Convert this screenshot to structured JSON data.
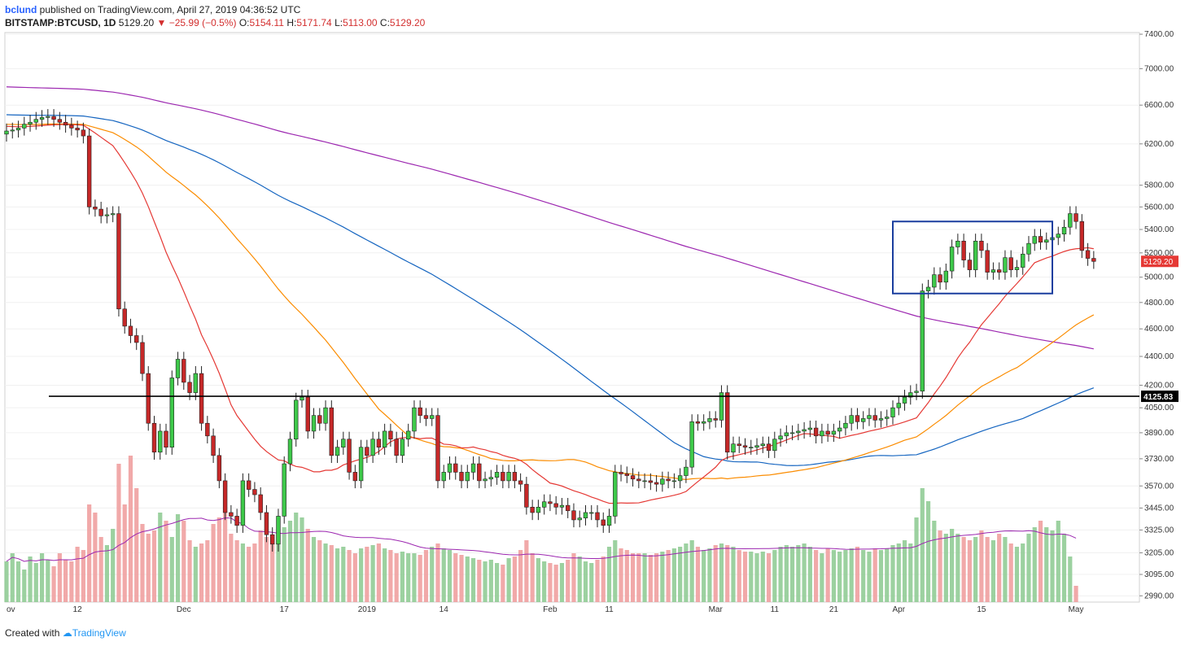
{
  "header": {
    "user": "bclund",
    "published": "published on TradingView.com, April 27, 2019 04:36:52 UTC"
  },
  "ohlc": {
    "symbol": "BITSTAMP:BTCUSD, 1D",
    "last": "5129.20",
    "change": "▼ −25.99 (−0.5%)",
    "o_label": "O:",
    "o": "5154.11",
    "h_label": "H:",
    "h": "5171.74",
    "l_label": "L:",
    "l": "5113.00",
    "c_label": "C:",
    "c": "5129.20"
  },
  "footer": {
    "created": "Created with",
    "brand": "TradingView"
  },
  "colors": {
    "up": "#26a69a",
    "up_body": "#3ec94a",
    "down": "#c62828",
    "down_body": "#c62828",
    "vol_up": "#8bc98f",
    "vol_down": "#ef9a9a",
    "ma_red": "#e53935",
    "ma_orange": "#fb8c00",
    "ma_blue": "#1565c0",
    "ma_purple": "#9c27b0",
    "box": "#1a3d9e",
    "hline": "#000000",
    "price_tag": "#e53935"
  },
  "chart_data": {
    "type": "candlestick",
    "symbol": "BITSTAMP:BTCUSD",
    "timeframe": "1D",
    "ylim": [
      2960,
      7420
    ],
    "y_scale": "log",
    "y_ticks": [
      2990,
      3095,
      3205,
      3325,
      3445,
      3570,
      3730,
      3890,
      4050,
      4200,
      4400,
      4600,
      4800,
      5000,
      5200,
      5400,
      5600,
      5800,
      6200,
      6600,
      7000,
      7400
    ],
    "y_tick_labels": [
      "2990.00",
      "3095.00",
      "3205.00",
      "3325.00",
      "3445.00",
      "3570.00",
      "3730.00",
      "3890.00",
      "4050.00",
      "4200.00",
      "4400.00",
      "4600.00",
      "4800.00",
      "5000.00",
      "5200.00",
      "5400.00",
      "5600.00",
      "5800.00",
      "6200.00",
      "6600.00",
      "7000.00",
      "7400.00"
    ],
    "x_labels": [
      {
        "day": 0,
        "label": "ov"
      },
      {
        "day": 12,
        "label": "12"
      },
      {
        "day": 30,
        "label": "Dec"
      },
      {
        "day": 47,
        "label": "17"
      },
      {
        "day": 61,
        "label": "2019"
      },
      {
        "day": 74,
        "label": "14"
      },
      {
        "day": 92,
        "label": "Feb"
      },
      {
        "day": 102,
        "label": "11"
      },
      {
        "day": 120,
        "label": "Mar"
      },
      {
        "day": 130,
        "label": "11"
      },
      {
        "day": 140,
        "label": "21"
      },
      {
        "day": 151,
        "label": "Apr"
      },
      {
        "day": 165,
        "label": "15"
      },
      {
        "day": 181,
        "label": "May"
      }
    ],
    "last_price_label": "5129.20",
    "hline_label": "4125.83",
    "hline_value": 4125.83,
    "consolidation_box": {
      "start_day": 150,
      "end_day": 177,
      "high": 5470,
      "low": 4870
    },
    "close": [
      6330,
      6340,
      6360,
      6400,
      6420,
      6450,
      6470,
      6480,
      6450,
      6420,
      6390,
      6360,
      6340,
      6280,
      5600,
      5580,
      5520,
      5530,
      5540,
      4750,
      4620,
      4550,
      4500,
      4280,
      3950,
      3770,
      3900,
      3800,
      4250,
      4380,
      4220,
      4150,
      4280,
      3950,
      3870,
      3750,
      3600,
      3420,
      3400,
      3350,
      3600,
      3550,
      3520,
      3420,
      3300,
      3250,
      3400,
      3700,
      3850,
      4100,
      4120,
      3900,
      4000,
      3950,
      4050,
      3750,
      3800,
      3850,
      3650,
      3600,
      3800,
      3750,
      3850,
      3800,
      3900,
      3850,
      3750,
      3850,
      3900,
      4050,
      4000,
      3980,
      4000,
      3600,
      3650,
      3700,
      3650,
      3600,
      3650,
      3700,
      3600,
      3610,
      3620,
      3650,
      3600,
      3650,
      3600,
      3580,
      3450,
      3420,
      3450,
      3480,
      3470,
      3450,
      3460,
      3430,
      3380,
      3390,
      3420,
      3420,
      3380,
      3350,
      3400,
      3650,
      3640,
      3630,
      3610,
      3600,
      3600,
      3590,
      3580,
      3610,
      3600,
      3600,
      3630,
      3680,
      3960,
      3950,
      3960,
      3980,
      3970,
      4150,
      3770,
      3820,
      3810,
      3800,
      3800,
      3810,
      3820,
      3780,
      3850,
      3870,
      3890,
      3890,
      3900,
      3910,
      3920,
      3870,
      3900,
      3880,
      3900,
      3920,
      3950,
      4000,
      3960,
      3980,
      4000,
      3970,
      3980,
      3990,
      4050,
      4080,
      4120,
      4150,
      4160,
      4890,
      4920,
      5020,
      4960,
      5050,
      5250,
      5300,
      5140,
      5060,
      5300,
      5220,
      5040,
      5060,
      5040,
      5160,
      5060,
      5080,
      5190,
      5280,
      5340,
      5290,
      5310,
      5330,
      5360,
      5420,
      5540,
      5470,
      5220,
      5154,
      5129
    ],
    "volume_ratio": [
      0.25,
      0.3,
      0.25,
      0.2,
      0.28,
      0.24,
      0.3,
      0.26,
      0.22,
      0.3,
      0.26,
      0.25,
      0.34,
      0.32,
      0.6,
      0.55,
      0.4,
      0.35,
      0.45,
      0.85,
      0.6,
      0.9,
      0.7,
      0.48,
      0.42,
      0.44,
      0.55,
      0.5,
      0.4,
      0.54,
      0.5,
      0.38,
      0.34,
      0.36,
      0.38,
      0.48,
      0.52,
      0.56,
      0.42,
      0.38,
      0.36,
      0.34,
      0.36,
      0.44,
      0.4,
      0.36,
      0.44,
      0.46,
      0.5,
      0.55,
      0.52,
      0.45,
      0.4,
      0.38,
      0.36,
      0.35,
      0.33,
      0.34,
      0.32,
      0.3,
      0.33,
      0.34,
      0.35,
      0.36,
      0.33,
      0.32,
      0.3,
      0.31,
      0.3,
      0.3,
      0.29,
      0.32,
      0.34,
      0.36,
      0.33,
      0.32,
      0.3,
      0.29,
      0.28,
      0.27,
      0.26,
      0.25,
      0.26,
      0.24,
      0.23,
      0.27,
      0.28,
      0.32,
      0.38,
      0.3,
      0.27,
      0.25,
      0.24,
      0.23,
      0.24,
      0.26,
      0.3,
      0.28,
      0.25,
      0.24,
      0.26,
      0.28,
      0.34,
      0.38,
      0.33,
      0.32,
      0.3,
      0.3,
      0.3,
      0.29,
      0.3,
      0.31,
      0.32,
      0.33,
      0.34,
      0.36,
      0.38,
      0.34,
      0.32,
      0.33,
      0.35,
      0.36,
      0.35,
      0.34,
      0.32,
      0.31,
      0.31,
      0.3,
      0.31,
      0.3,
      0.32,
      0.34,
      0.35,
      0.34,
      0.35,
      0.36,
      0.34,
      0.32,
      0.3,
      0.33,
      0.32,
      0.31,
      0.32,
      0.33,
      0.34,
      0.32,
      0.31,
      0.33,
      0.32,
      0.33,
      0.35,
      0.36,
      0.38,
      0.36,
      0.52,
      0.7,
      0.62,
      0.5,
      0.44,
      0.42,
      0.45,
      0.42,
      0.4,
      0.38,
      0.4,
      0.44,
      0.4,
      0.38,
      0.42,
      0.4,
      0.36,
      0.34,
      0.36,
      0.42,
      0.46,
      0.5,
      0.46,
      0.44,
      0.5,
      0.42,
      0.28,
      0.1
    ]
  }
}
